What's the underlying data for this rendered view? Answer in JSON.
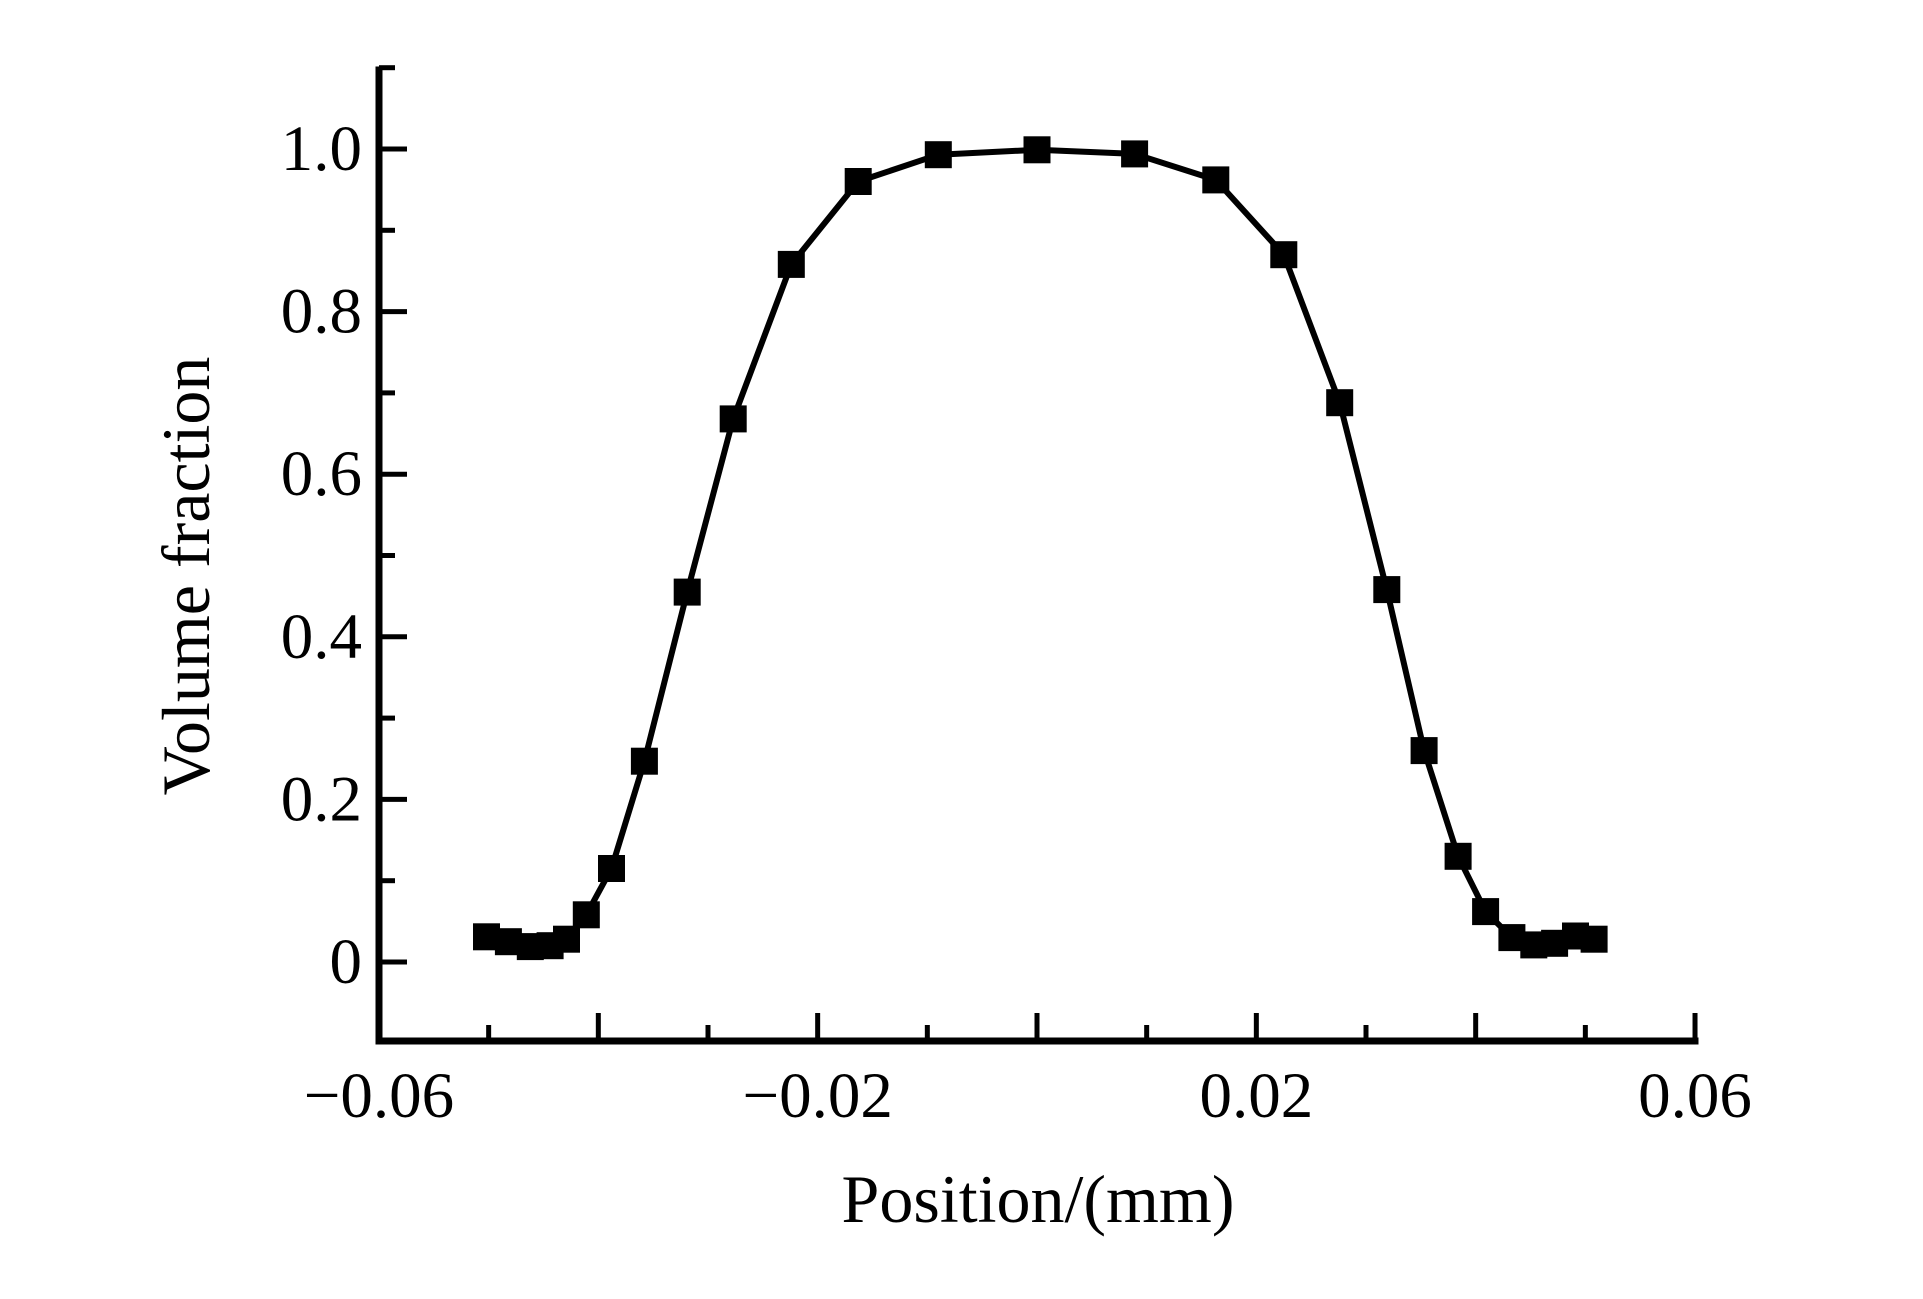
{
  "figure": {
    "background": "#ffffff",
    "foreground": "#000000"
  },
  "chart_data": {
    "type": "line",
    "title": "",
    "xlabel": "Position/(mm)",
    "ylabel": "Volume fraction",
    "grid": false,
    "legend": false,
    "marker": "square",
    "color": "#000000",
    "xlim": [
      -0.06,
      0.06
    ],
    "ylim": [
      -0.097,
      1.097
    ],
    "x_axis": {
      "major_ticks": [
        -0.06,
        -0.04,
        -0.02,
        0,
        0.02,
        0.04,
        0.06
      ],
      "minor_ticks": [
        -0.05,
        -0.03,
        -0.01,
        0.01,
        0.03,
        0.05
      ],
      "labels": [
        {
          "value": -0.06,
          "label": "−0.06"
        },
        {
          "value": -0.02,
          "label": "−0.02"
        },
        {
          "value": 0.02,
          "label": "0.02"
        },
        {
          "value": 0.06,
          "label": "0.06"
        }
      ]
    },
    "y_axis": {
      "major_ticks": [
        0,
        0.2,
        0.4,
        0.6,
        0.8,
        1.0
      ],
      "minor_ticks": [
        0.1,
        0.3,
        0.5,
        0.7,
        0.9,
        1.1
      ],
      "labels": [
        {
          "value": 0,
          "label": "0"
        },
        {
          "value": 0.2,
          "label": "0.2"
        },
        {
          "value": 0.4,
          "label": "0.4"
        },
        {
          "value": 0.6,
          "label": "0.6"
        },
        {
          "value": 0.8,
          "label": "0.8"
        },
        {
          "value": 1.0,
          "label": "1.0"
        }
      ]
    },
    "series": [
      {
        "name": "volume-fraction-profile",
        "points": [
          [
            -0.0502,
            0.031
          ],
          [
            -0.0482,
            0.025
          ],
          [
            -0.0462,
            0.019
          ],
          [
            -0.0444,
            0.02
          ],
          [
            -0.0429,
            0.028
          ],
          [
            -0.0411,
            0.058
          ],
          [
            -0.0388,
            0.115
          ],
          [
            -0.0358,
            0.247
          ],
          [
            -0.0319,
            0.455
          ],
          [
            -0.0277,
            0.668
          ],
          [
            -0.0224,
            0.858
          ],
          [
            -0.0163,
            0.96
          ],
          [
            -0.009,
            0.993
          ],
          [
            0.0,
            0.999
          ],
          [
            0.0089,
            0.994
          ],
          [
            0.0163,
            0.962
          ],
          [
            0.0225,
            0.87
          ],
          [
            0.0276,
            0.688
          ],
          [
            0.0319,
            0.458
          ],
          [
            0.0353,
            0.26
          ],
          [
            0.0384,
            0.13
          ],
          [
            0.0409,
            0.062
          ],
          [
            0.0433,
            0.03
          ],
          [
            0.0453,
            0.021
          ],
          [
            0.0472,
            0.023
          ],
          [
            0.0491,
            0.032
          ],
          [
            0.0508,
            0.028
          ]
        ]
      }
    ]
  }
}
